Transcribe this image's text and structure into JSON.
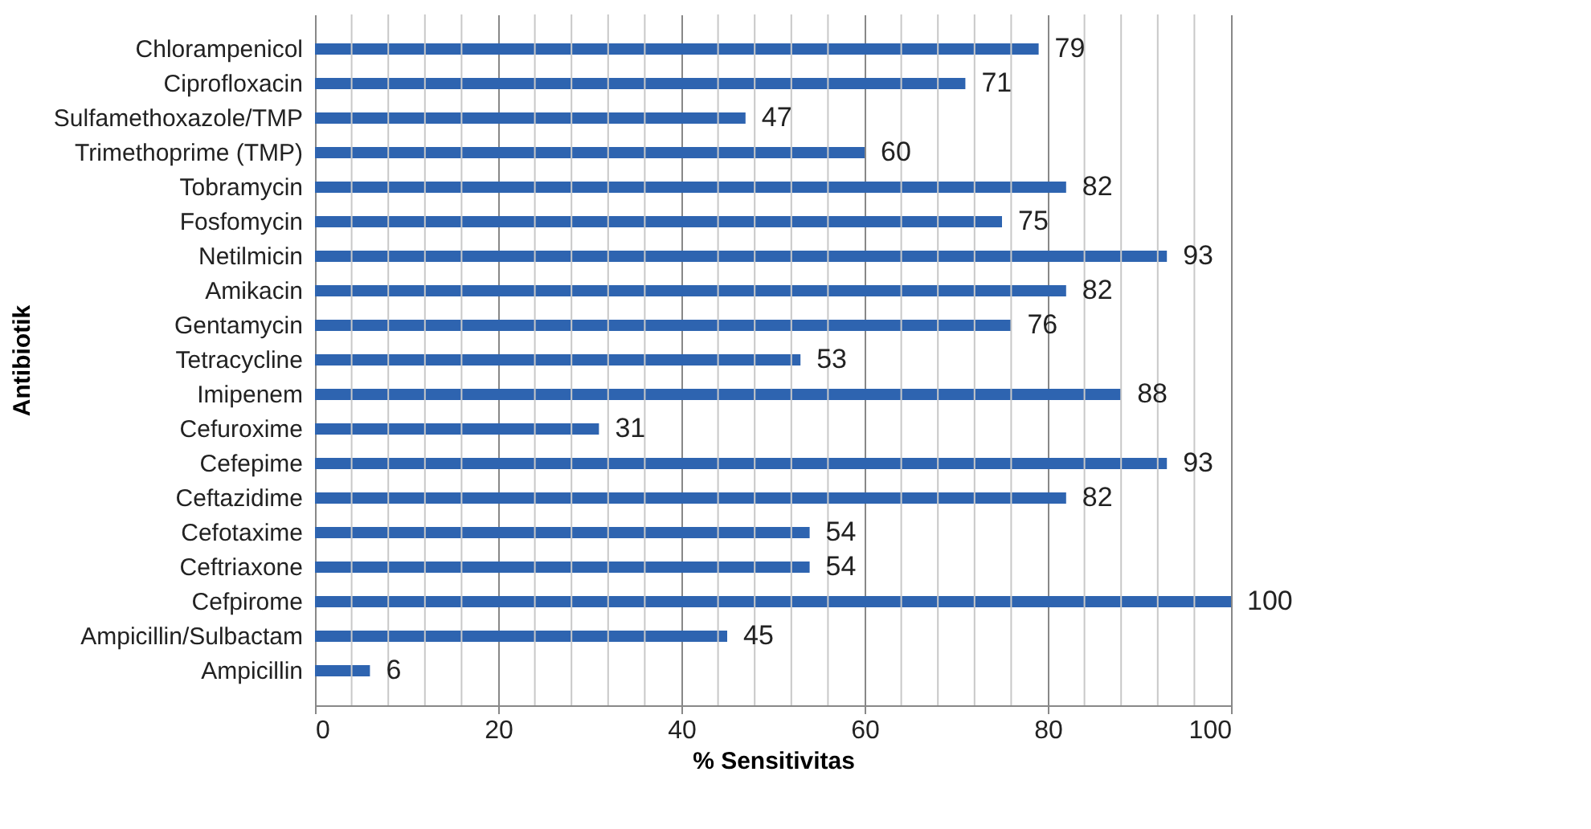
{
  "chart_data": {
    "type": "bar",
    "orientation": "horizontal",
    "xlabel": "% Sensitivitas",
    "ylabel": "Antibiotik",
    "categories": [
      "Chlorampenicol",
      "Ciprofloxacin",
      "Sulfamethoxazole/TMP",
      "Trimethoprime (TMP)",
      "Tobramycin",
      "Fosfomycin",
      "Netilmicin",
      "Amikacin",
      "Gentamycin",
      "Tetracycline",
      "Imipenem",
      "Cefuroxime",
      "Cefepime",
      "Ceftazidime",
      "Cefotaxime",
      "Ceftriaxone",
      "Cefpirome",
      "Ampicillin/Sulbactam",
      "Ampicillin"
    ],
    "values": [
      79,
      71,
      47,
      60,
      82,
      75,
      93,
      82,
      76,
      53,
      88,
      31,
      93,
      82,
      54,
      54,
      100,
      45,
      6
    ],
    "color": "#2e64b0",
    "data_labels": true,
    "grid": "x",
    "xlim": [
      0,
      100
    ],
    "xticks": [
      0,
      {
        "value": 4,
        "label": null
      },
      {
        "value": 8,
        "label": null
      },
      {
        "value": 12,
        "label": null
      },
      {
        "value": 16,
        "label": null
      },
      20,
      {
        "value": 24,
        "label": null
      },
      {
        "value": 28,
        "label": null
      },
      {
        "value": 32,
        "label": null
      },
      {
        "value": 36,
        "label": null
      },
      40,
      {
        "value": 44,
        "label": null
      },
      {
        "value": 48,
        "label": null
      },
      {
        "value": 52,
        "label": null
      },
      {
        "value": 56,
        "label": null
      },
      60,
      {
        "value": 64,
        "label": null
      },
      {
        "value": 68,
        "label": null
      },
      {
        "value": 72,
        "label": null
      },
      {
        "value": 76,
        "label": null
      },
      80,
      {
        "value": 84,
        "label": null
      },
      {
        "value": 88,
        "label": null
      },
      {
        "value": 92,
        "label": null
      },
      {
        "value": 96,
        "label": null
      },
      100
    ]
  }
}
